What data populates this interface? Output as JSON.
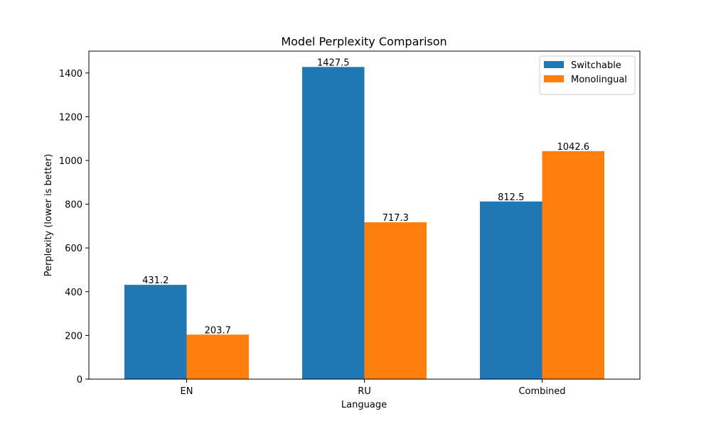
{
  "chart_data": {
    "type": "bar",
    "title": "Model Perplexity Comparison",
    "xlabel": "Language",
    "ylabel": "Perplexity (lower is better)",
    "categories": [
      "EN",
      "RU",
      "Combined"
    ],
    "series": [
      {
        "name": "Switchable",
        "color": "#1f77b4",
        "values": [
          431.2,
          1427.5,
          812.5
        ]
      },
      {
        "name": "Monolingual",
        "color": "#ff7f0e",
        "values": [
          203.7,
          717.3,
          1042.6
        ]
      }
    ],
    "ylim": [
      0,
      1500
    ],
    "yticks": [
      0,
      200,
      400,
      600,
      800,
      1000,
      1200,
      1400
    ],
    "grid": false,
    "legend_position": "top-right"
  }
}
